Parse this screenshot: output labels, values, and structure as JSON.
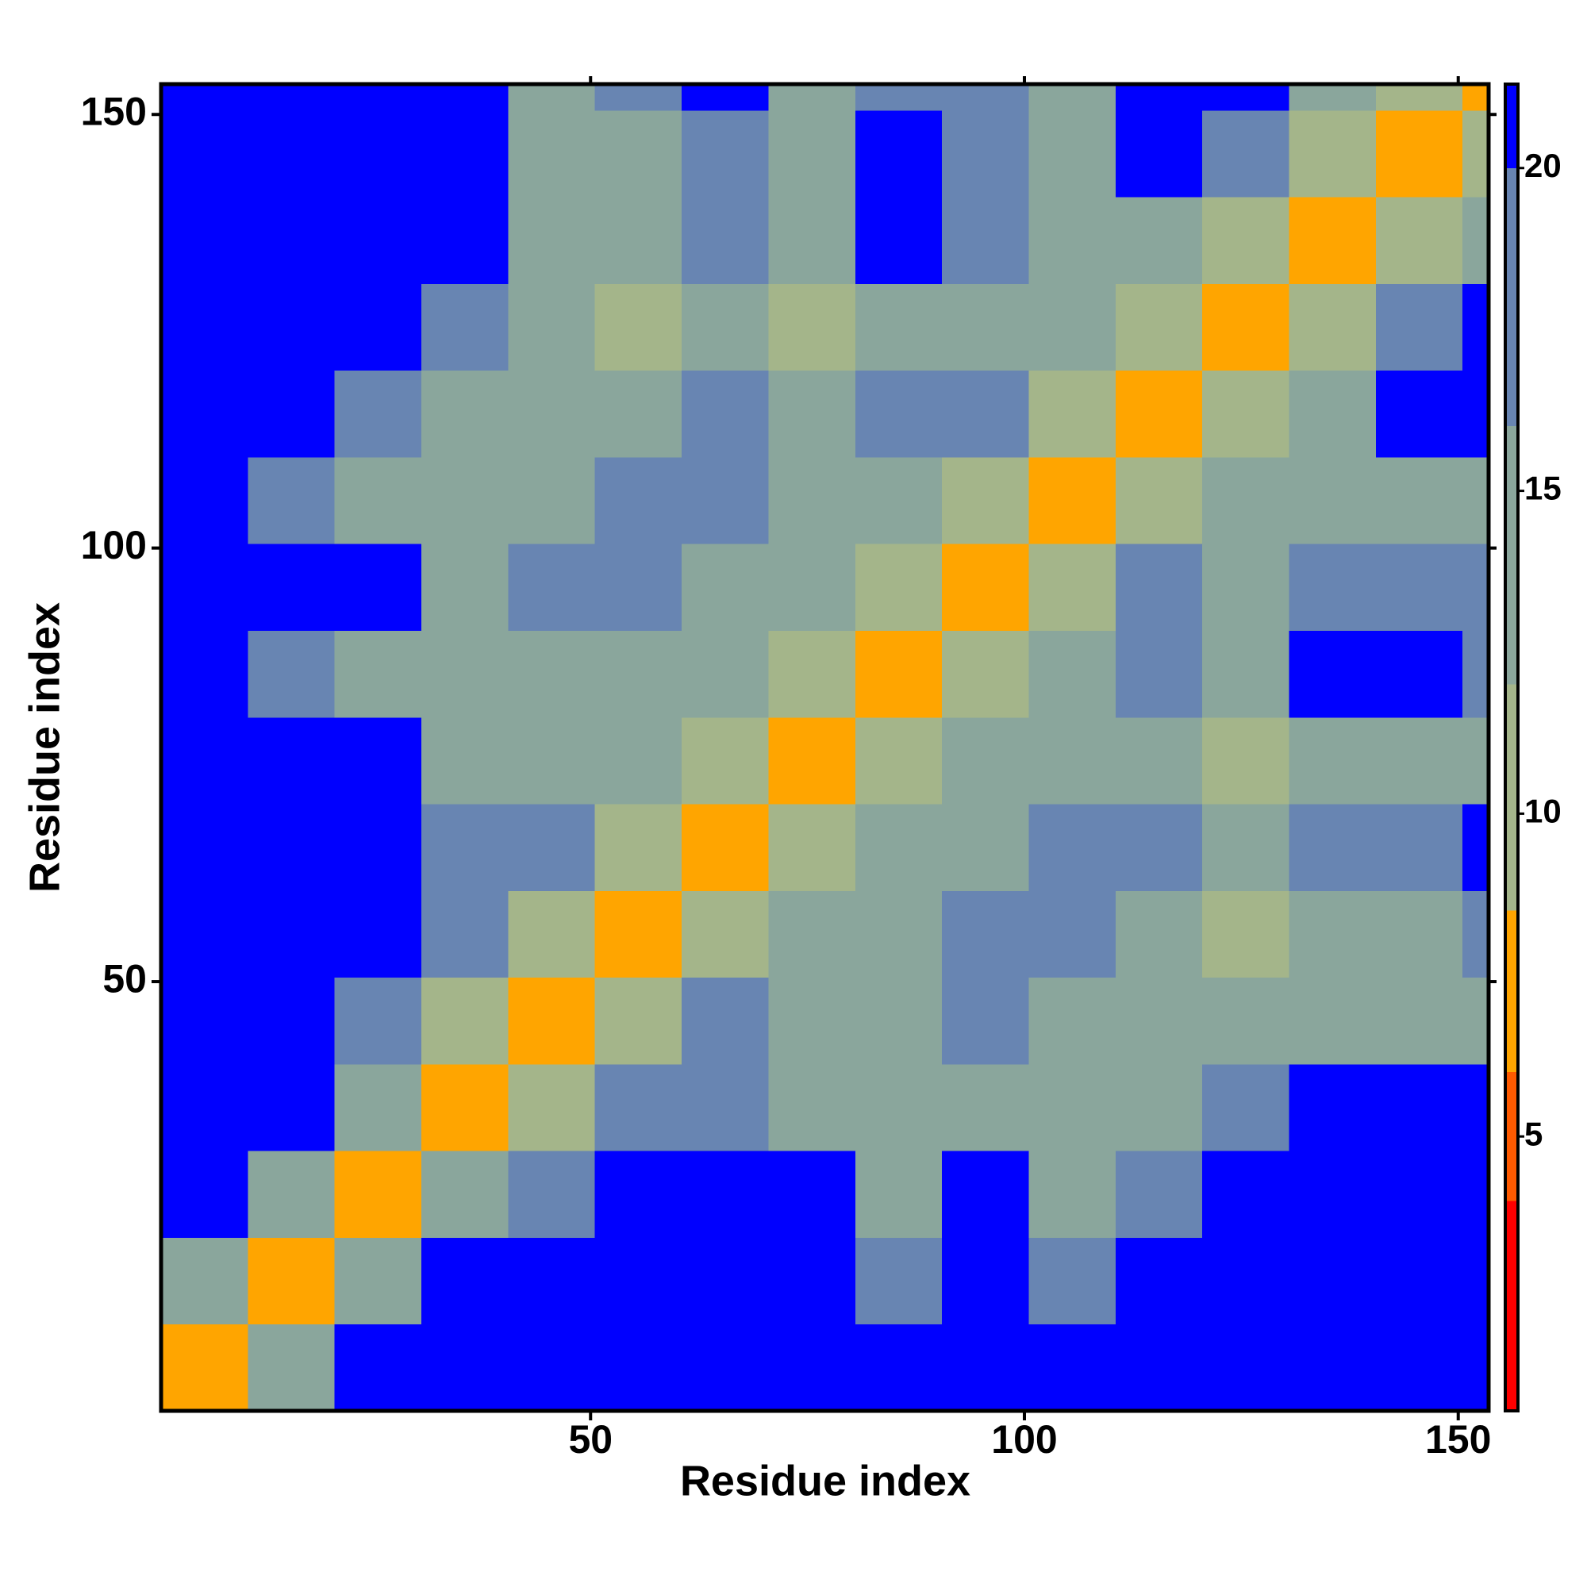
{
  "chart_data": {
    "type": "heatmap",
    "x_label": "Residue index",
    "y_label": "Residue index",
    "xlim": [
      0.5,
      153.5
    ],
    "ylim": [
      0.5,
      153.5
    ],
    "xticks": [
      50,
      100,
      150
    ],
    "yticks": [
      50,
      100,
      150
    ],
    "xbins": [
      0.5,
      10.5,
      20.5,
      30.5,
      40.5,
      50.5,
      60.5,
      70.5,
      80.5,
      90.5,
      100.5,
      110.5,
      120.5,
      130.5,
      140.5,
      150.5,
      153.5
    ],
    "ybins": [
      0.5,
      10.5,
      20.5,
      30.5,
      40.5,
      50.5,
      60.5,
      70.5,
      80.5,
      90.5,
      100.5,
      110.5,
      120.5,
      130.5,
      140.5,
      150.5,
      153.5
    ],
    "values": [
      [
        6,
        14,
        21,
        21,
        21,
        21,
        21,
        21,
        21,
        21,
        21,
        21,
        21,
        21,
        21,
        21
      ],
      [
        14,
        6,
        14,
        21,
        21,
        21,
        21,
        21,
        17,
        21,
        17,
        21,
        21,
        21,
        21,
        21
      ],
      [
        21,
        14,
        6,
        13,
        18,
        21,
        21,
        21,
        15,
        20,
        15,
        18,
        21,
        21,
        21,
        21
      ],
      [
        21,
        21,
        13,
        6,
        11,
        16,
        18,
        14,
        12,
        13,
        14,
        13,
        17,
        20,
        21,
        21
      ],
      [
        21,
        21,
        18,
        11,
        6,
        10,
        17,
        15,
        13,
        18,
        13,
        14,
        15,
        13,
        12,
        15
      ],
      [
        21,
        21,
        21,
        16,
        10,
        6,
        9,
        14,
        15,
        18,
        17,
        13,
        11,
        12,
        13,
        16
      ],
      [
        21,
        21,
        21,
        18,
        17,
        9,
        6,
        9,
        13,
        14,
        17,
        18,
        13,
        16,
        19,
        20
      ],
      [
        21,
        21,
        21,
        14,
        15,
        14,
        9,
        6,
        10,
        12,
        12,
        13,
        11,
        14,
        15,
        15
      ],
      [
        21,
        17,
        15,
        12,
        13,
        15,
        13,
        10,
        6,
        10,
        15,
        16,
        13,
        21,
        20,
        18
      ],
      [
        21,
        21,
        20,
        13,
        18,
        18,
        14,
        12,
        10,
        6,
        9,
        17,
        14,
        19,
        17,
        16
      ],
      [
        21,
        17,
        15,
        14,
        13,
        17,
        17,
        12,
        15,
        9,
        6,
        9,
        12,
        15,
        14,
        15
      ],
      [
        21,
        21,
        18,
        13,
        14,
        13,
        18,
        13,
        16,
        17,
        9,
        6,
        9,
        15,
        20,
        21
      ],
      [
        21,
        21,
        21,
        17,
        15,
        11,
        13,
        11,
        13,
        14,
        12,
        9,
        6,
        9,
        16,
        20
      ],
      [
        21,
        21,
        21,
        20,
        13,
        12,
        16,
        14,
        21,
        19,
        15,
        15,
        9,
        6,
        9,
        15
      ],
      [
        21,
        21,
        21,
        21,
        12,
        13,
        19,
        15,
        20,
        17,
        14,
        20,
        16,
        9,
        6,
        9
      ],
      [
        21,
        21,
        21,
        21,
        15,
        16,
        20,
        15,
        18,
        16,
        15,
        21,
        20,
        15,
        9,
        6
      ]
    ],
    "zlim": [
      0.75,
      21.3
    ],
    "zticks": [
      5,
      10,
      15,
      20
    ],
    "color_bands": [
      {
        "from": 0.75,
        "color": "#ff0000"
      },
      {
        "from": 4,
        "color": "#ff5a00"
      },
      {
        "from": 6,
        "color": "#ffa500"
      },
      {
        "from": 8.5,
        "color": "#a4b58a"
      },
      {
        "from": 12,
        "color": "#8aa69c"
      },
      {
        "from": 16,
        "color": "#6885b2"
      },
      {
        "from": 20,
        "color": "#0000ff"
      }
    ]
  }
}
